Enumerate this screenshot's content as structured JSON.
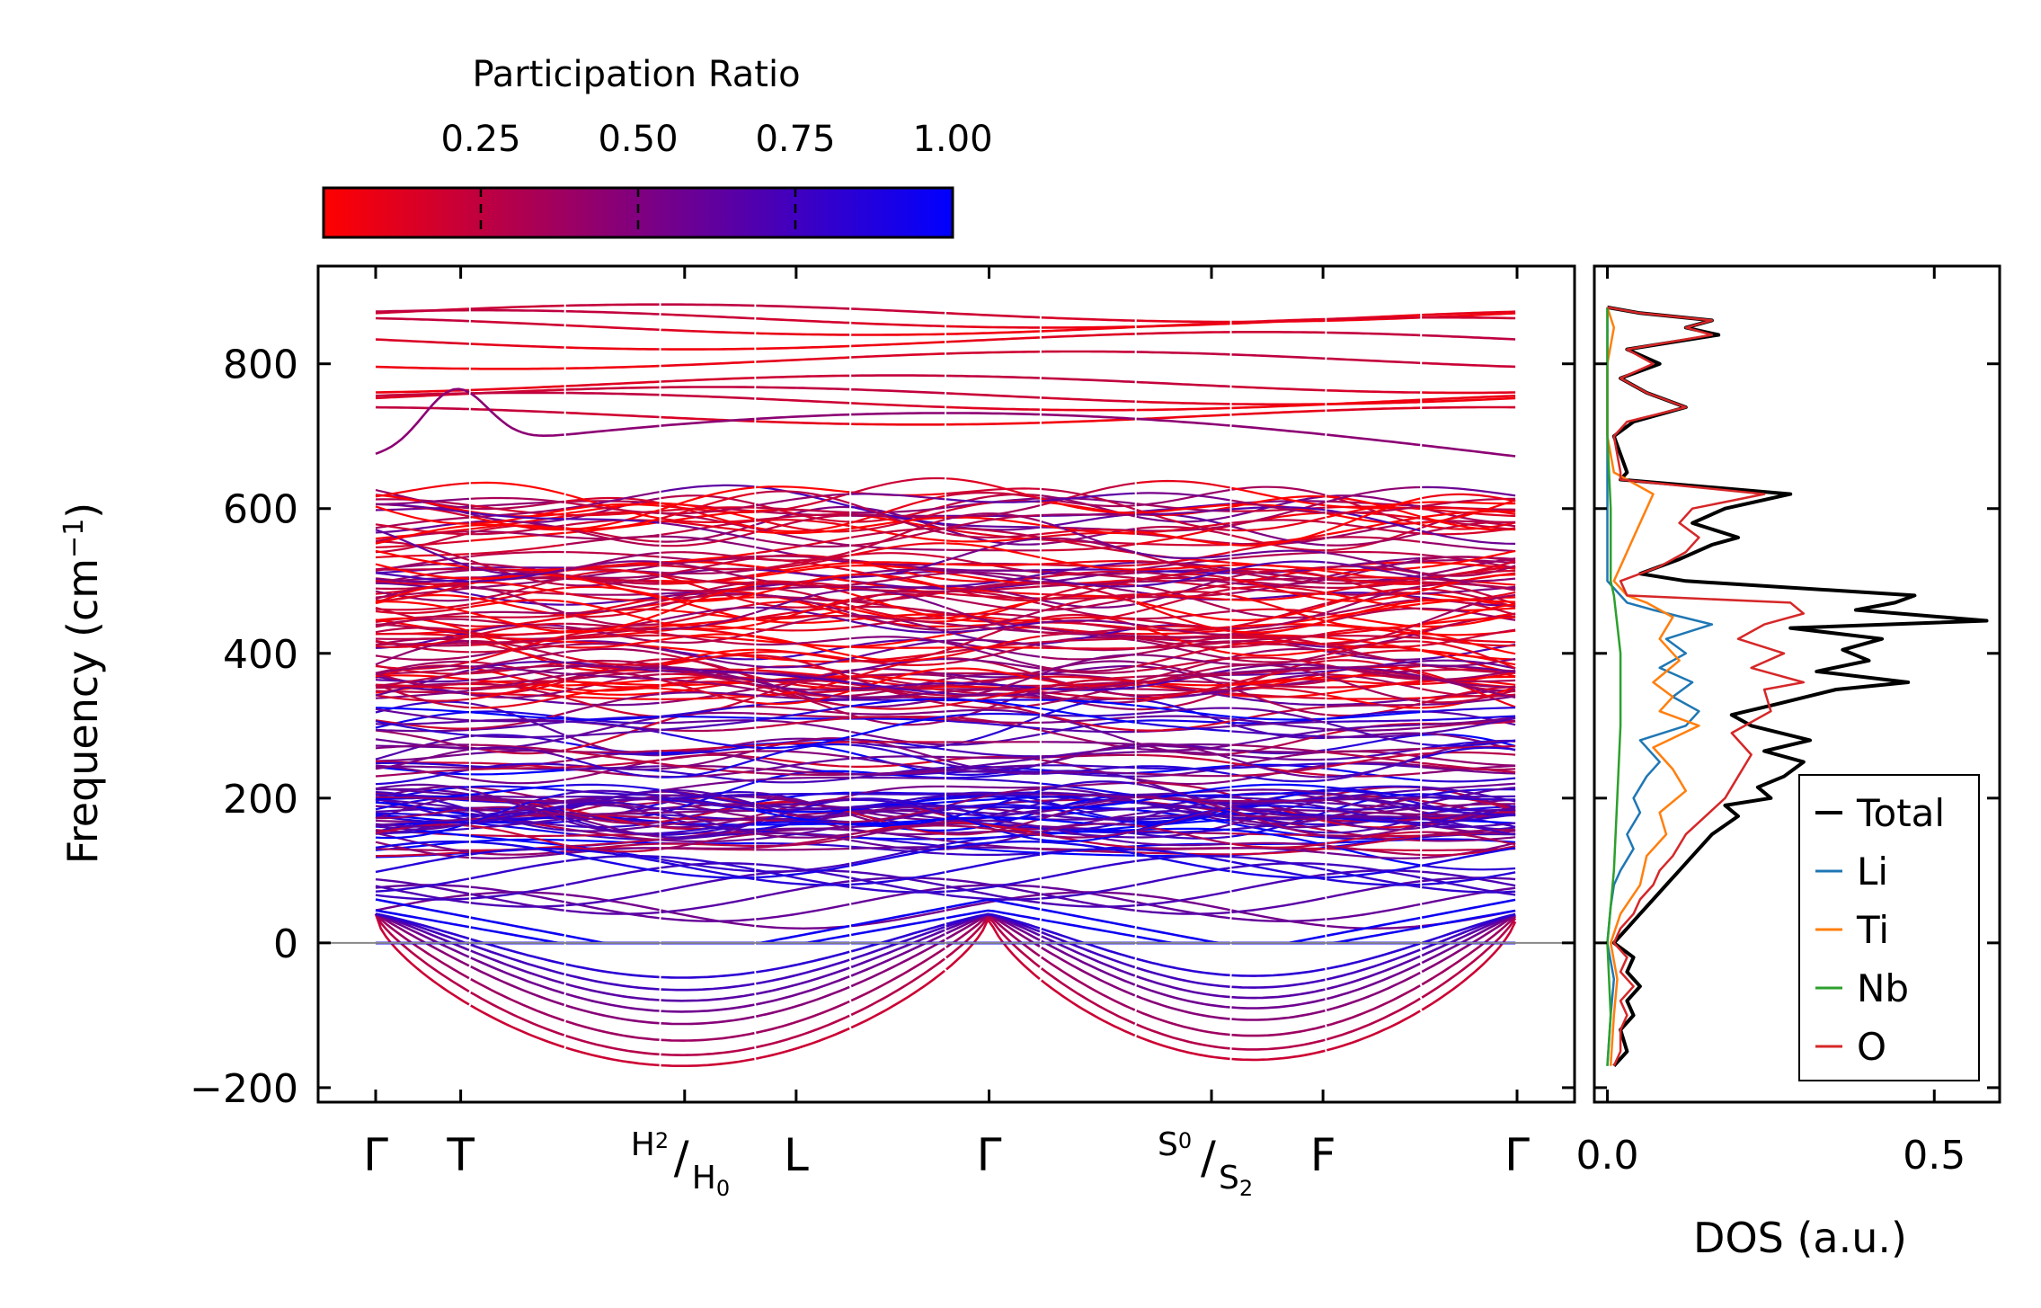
{
  "chart_data": [
    {
      "type": "line",
      "name": "phonon-band-structure",
      "ylabel": "Frequency (cm⁻¹)",
      "ylabel_base": "Frequency (cm",
      "ylabel_exp": "−1",
      "ylabel_close": ")",
      "ylim": [
        -220,
        935
      ],
      "yticks": [
        -200,
        0,
        200,
        400,
        600,
        800
      ],
      "ytick_labels": [
        "−200",
        "0",
        "200",
        "400",
        "600",
        "800"
      ],
      "high_symmetry_points": [
        {
          "label": "Γ",
          "x": 0.0
        },
        {
          "label": "T",
          "x": 0.0745
        },
        {
          "label": "H2/H0",
          "x": 0.2707,
          "num": "H",
          "num_sub": "2",
          "den": "H",
          "den_sub": "0"
        },
        {
          "label": "L",
          "x": 0.3684
        },
        {
          "label": "Γ",
          "x": 0.5374
        },
        {
          "label": "S0/S2",
          "x": 0.7323,
          "num": "S",
          "num_sub": "0",
          "den": "S",
          "den_sub": "2"
        },
        {
          "label": "F",
          "x": 0.83
        },
        {
          "label": "Γ",
          "x": 1.0
        }
      ],
      "zero_line": 0,
      "colormap": {
        "min_color": "#ff0000",
        "max_color": "#0000ff"
      },
      "bands_description": "optical branches colored by participation ratio; acoustic-like and unstable branches dip below zero",
      "representative_bands": {
        "flat_high": [
          870,
          862,
          852,
          832,
          805,
          772,
          756,
          748,
          728
        ],
        "unstable_minima": [
          -170,
          -155,
          -135,
          -112,
          -95,
          -80,
          -65,
          -48
        ]
      }
    },
    {
      "type": "line",
      "name": "phonon-dos",
      "xlabel": "DOS (a.u.)",
      "xlim": [
        -0.02,
        0.6
      ],
      "xticks": [
        0.0,
        0.5
      ],
      "xtick_labels": [
        "0.0",
        "0.5"
      ],
      "series": [
        {
          "name": "Total",
          "color": "#000000",
          "freq": [
            -170,
            -150,
            -120,
            -100,
            -80,
            -60,
            -40,
            -20,
            0,
            20,
            40,
            60,
            80,
            100,
            120,
            150,
            175,
            190,
            200,
            215,
            230,
            250,
            265,
            280,
            300,
            315,
            330,
            350,
            360,
            375,
            390,
            405,
            420,
            435,
            445,
            460,
            470,
            480,
            500,
            510,
            530,
            550,
            560,
            580,
            600,
            620,
            640,
            650,
            700,
            720,
            740,
            760,
            780,
            800,
            820,
            840,
            850,
            860,
            870,
            878
          ],
          "values": [
            0.01,
            0.03,
            0.02,
            0.04,
            0.03,
            0.05,
            0.03,
            0.04,
            0.01,
            0.03,
            0.05,
            0.07,
            0.09,
            0.11,
            0.13,
            0.16,
            0.2,
            0.18,
            0.25,
            0.23,
            0.27,
            0.3,
            0.24,
            0.31,
            0.22,
            0.19,
            0.26,
            0.35,
            0.46,
            0.32,
            0.4,
            0.36,
            0.42,
            0.28,
            0.58,
            0.38,
            0.44,
            0.47,
            0.12,
            0.05,
            0.11,
            0.16,
            0.2,
            0.13,
            0.18,
            0.28,
            0.02,
            0.03,
            0.01,
            0.04,
            0.12,
            0.06,
            0.02,
            0.08,
            0.03,
            0.17,
            0.12,
            0.16,
            0.05,
            0.0
          ]
        },
        {
          "name": "Li",
          "color": "#1f77b4",
          "freq": [
            -170,
            -100,
            -50,
            0,
            50,
            80,
            100,
            130,
            150,
            180,
            200,
            230,
            250,
            280,
            300,
            320,
            340,
            360,
            380,
            400,
            420,
            440,
            460,
            470,
            480,
            500,
            550,
            600,
            650,
            700,
            800,
            878
          ],
          "values": [
            0.0,
            0.005,
            0.01,
            0.0,
            0.005,
            0.01,
            0.02,
            0.04,
            0.03,
            0.05,
            0.04,
            0.06,
            0.08,
            0.05,
            0.12,
            0.14,
            0.1,
            0.13,
            0.08,
            0.12,
            0.09,
            0.16,
            0.07,
            0.03,
            0.02,
            0.0,
            0.0,
            0.0,
            0.0,
            0.0,
            0.0,
            0.0
          ]
        },
        {
          "name": "Ti",
          "color": "#ff7f0e",
          "freq": [
            -170,
            -100,
            -50,
            0,
            40,
            80,
            120,
            150,
            180,
            210,
            240,
            270,
            300,
            320,
            340,
            360,
            390,
            420,
            450,
            470,
            480,
            500,
            520,
            560,
            600,
            620,
            640,
            650,
            700,
            760,
            800,
            850,
            878
          ],
          "values": [
            0.005,
            0.01,
            0.015,
            0.005,
            0.02,
            0.05,
            0.06,
            0.09,
            0.08,
            0.12,
            0.1,
            0.07,
            0.14,
            0.08,
            0.1,
            0.07,
            0.11,
            0.08,
            0.1,
            0.06,
            0.03,
            0.01,
            0.02,
            0.04,
            0.06,
            0.07,
            0.03,
            0.01,
            0.0,
            0.0,
            0.0,
            0.01,
            0.0
          ]
        },
        {
          "name": "Nb",
          "color": "#2ca02c",
          "freq": [
            -170,
            -100,
            0,
            100,
            200,
            300,
            400,
            480,
            500,
            600,
            700,
            800,
            878
          ],
          "values": [
            0.0,
            0.005,
            0.0,
            0.01,
            0.015,
            0.02,
            0.02,
            0.01,
            0.005,
            0.005,
            0.0,
            0.0,
            0.0
          ]
        },
        {
          "name": "O",
          "color": "#d62728",
          "freq": [
            -170,
            -150,
            -120,
            -100,
            -80,
            -60,
            -40,
            -20,
            0,
            20,
            40,
            60,
            80,
            100,
            120,
            150,
            175,
            200,
            230,
            260,
            290,
            320,
            350,
            360,
            380,
            400,
            420,
            440,
            455,
            470,
            480,
            500,
            520,
            540,
            560,
            580,
            600,
            620,
            640,
            650,
            700,
            720,
            740,
            760,
            780,
            800,
            820,
            840,
            850,
            860,
            870,
            878
          ],
          "values": [
            0.01,
            0.02,
            0.02,
            0.03,
            0.02,
            0.04,
            0.02,
            0.03,
            0.01,
            0.02,
            0.04,
            0.05,
            0.07,
            0.08,
            0.1,
            0.12,
            0.15,
            0.18,
            0.2,
            0.22,
            0.19,
            0.25,
            0.24,
            0.3,
            0.22,
            0.27,
            0.2,
            0.24,
            0.3,
            0.28,
            0.03,
            0.02,
            0.08,
            0.12,
            0.14,
            0.11,
            0.13,
            0.24,
            0.02,
            0.02,
            0.01,
            0.03,
            0.12,
            0.06,
            0.02,
            0.07,
            0.03,
            0.16,
            0.12,
            0.16,
            0.05,
            0.0
          ]
        }
      ],
      "legend_position": "lower-right"
    }
  ],
  "colorbar": {
    "title": "Participation Ratio",
    "range": [
      0.0,
      1.0
    ],
    "ticks": [
      0.25,
      0.5,
      0.75,
      1.0
    ],
    "tick_labels": [
      "0.25",
      "0.50",
      "0.75",
      "1.00"
    ],
    "min_color": "#ff0000",
    "mid_color": "#80007f",
    "max_color": "#0000ff"
  }
}
